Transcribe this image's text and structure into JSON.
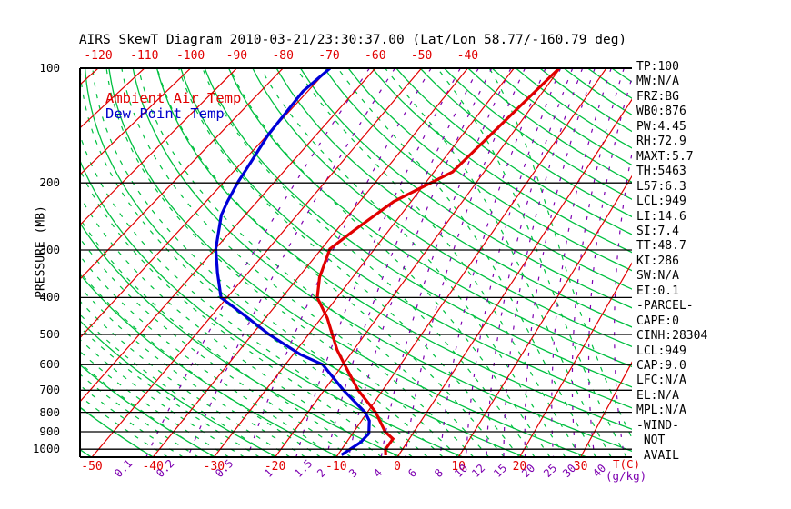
{
  "title": "AIRS SkewT Diagram 2010-03-21/23:30:37.00 (Lat/Lon 58.77/-160.79 deg)",
  "legend": {
    "temp": "Ambient Air Temp",
    "dew": "Dew Point Temp"
  },
  "axes": {
    "pressure_label": "PRESSURE (MB)",
    "pressure_ticks": [
      100,
      200,
      300,
      400,
      500,
      600,
      700,
      800,
      900,
      1000
    ],
    "pressure_bottom": 1050,
    "top_temp_ticks": [
      -120,
      -110,
      -100,
      -90,
      -80,
      -70,
      -60,
      -50,
      -40
    ],
    "bottom_temp_ticks": [
      -50,
      -40,
      -30,
      -20,
      -10,
      0,
      10,
      20,
      30
    ],
    "temp_unit_label": "T(C)",
    "mixing_ratio_unit_label": "(g/kg)"
  },
  "params": {
    "items": [
      "TP:100",
      "MW:N/A",
      "FRZ:BG",
      "WB0:876",
      "PW:4.45",
      "RH:72.9",
      "MAXT:5.7",
      "TH:5463",
      "L57:6.3",
      "LCL:949",
      "LI:14.6",
      "SI:7.4",
      "TT:48.7",
      "KI:286",
      "SW:N/A",
      "EI:0.1",
      "-PARCEL-",
      "CAPE:0",
      "CINH:28304",
      "LCL:949",
      "CAP:9.0",
      "LFC:N/A",
      "EL:N/A",
      "MPL:N/A",
      "-WIND-",
      " NOT",
      " AVAIL"
    ]
  },
  "colors": {
    "isotherm": "#e10000",
    "adiabat": "#00c040",
    "mixing": "#7d00b0",
    "temp_curve": "#e10000",
    "dew_curve": "#0000d8",
    "grid": "#000000"
  },
  "chart_data": {
    "type": "line",
    "title": "AIRS SkewT Diagram 2010-03-21/23:30:37.00 (Lat/Lon 58.77/-160.79 deg)",
    "xlabel": "T(C)",
    "ylabel": "PRESSURE (MB)",
    "y_axis": {
      "scale": "log",
      "range": [
        100,
        1050
      ],
      "ticks": [
        100,
        200,
        300,
        400,
        500,
        600,
        700,
        800,
        900,
        1000
      ]
    },
    "x_axis": {
      "top_ticks": [
        -120,
        -110,
        -100,
        -90,
        -80,
        -70,
        -60,
        -50,
        -40
      ],
      "bottom_ticks": [
        -50,
        -40,
        -30,
        -20,
        -10,
        0,
        10,
        20,
        30
      ]
    },
    "grid": {
      "isotherms_c": [
        -120,
        -110,
        -100,
        -90,
        -80,
        -70,
        -60,
        -50,
        -40,
        -30,
        -20,
        -10,
        0,
        10,
        20,
        30,
        40
      ],
      "dry_adiabats_theta_k": [
        220,
        230,
        240,
        250,
        260,
        270,
        280,
        290,
        300,
        310,
        320,
        330,
        340,
        350,
        360,
        370,
        380,
        390,
        400,
        410,
        420,
        430,
        440,
        450,
        460,
        470,
        480,
        490,
        500,
        510,
        520
      ],
      "moist_adiabats_start_c": [
        -40,
        -37.5,
        -35,
        -32.5,
        -30,
        -27.5,
        -25,
        -22.5,
        -20,
        -17.5,
        -15,
        -12.5,
        -10,
        -7.5,
        -5,
        -2.5,
        0,
        2.5,
        5,
        7.5,
        10,
        12.5,
        15,
        17.5,
        20,
        22.5,
        25,
        27.5,
        30,
        32.5,
        35,
        37.5,
        40
      ],
      "mixing_ratio_g_kg": [
        0.1,
        0.2,
        0.5,
        1,
        1.5,
        2,
        3,
        4,
        6,
        8,
        10,
        12,
        15,
        20,
        25,
        30,
        40
      ]
    },
    "series": [
      {
        "name": "Ambient Air Temp",
        "color": "#e10000",
        "points": [
          [
            100,
            -20.2
          ],
          [
            141,
            -23.7
          ],
          [
            187,
            -26.3
          ],
          [
            224,
            -33.4
          ],
          [
            266,
            -36.6
          ],
          [
            298,
            -38.4
          ],
          [
            354,
            -36.1
          ],
          [
            400,
            -33.6
          ],
          [
            453,
            -28.9
          ],
          [
            500,
            -25.8
          ],
          [
            549,
            -22.9
          ],
          [
            600,
            -19.7
          ],
          [
            700,
            -14.2
          ],
          [
            800,
            -8.6
          ],
          [
            900,
            -4.8
          ],
          [
            940,
            -2.7
          ],
          [
            1000,
            -2.8
          ],
          [
            1038,
            -2.1
          ]
        ]
      },
      {
        "name": "Dew Point Temp",
        "color": "#0000d8",
        "points": [
          [
            100,
            -69.8
          ],
          [
            115,
            -71.0
          ],
          [
            149,
            -69.9
          ],
          [
            178,
            -68.2
          ],
          [
            199,
            -67.2
          ],
          [
            224,
            -65.8
          ],
          [
            243,
            -64.6
          ],
          [
            298,
            -59.9
          ],
          [
            344,
            -55.7
          ],
          [
            400,
            -51.1
          ],
          [
            453,
            -43.1
          ],
          [
            500,
            -37.0
          ],
          [
            564,
            -28.8
          ],
          [
            600,
            -23.5
          ],
          [
            700,
            -16.7
          ],
          [
            800,
            -10.4
          ],
          [
            842,
            -8.7
          ],
          [
            910,
            -7.3
          ],
          [
            961,
            -7.7
          ],
          [
            1035,
            -9.4
          ]
        ]
      }
    ]
  }
}
